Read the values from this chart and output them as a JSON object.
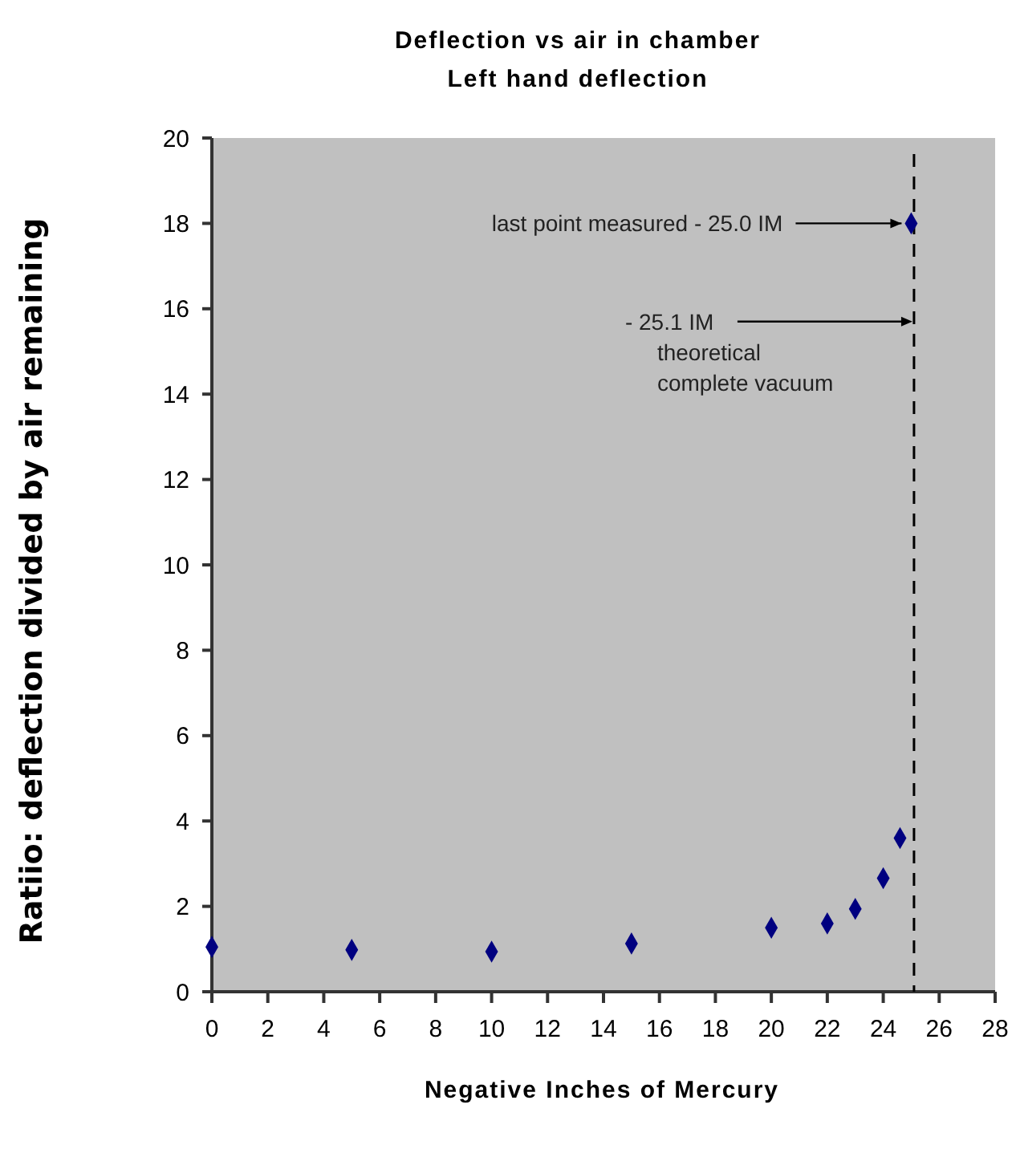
{
  "chart_data": {
    "type": "scatter",
    "title": "Deflection vs air in chamber",
    "subtitle": "Left hand deflection",
    "xlabel": "Negative Inches of Mercury",
    "ylabel": "Ratiio:  deflection divided by air remaining",
    "x": [
      0,
      5,
      10,
      15,
      20,
      22,
      23,
      24,
      24.6,
      25
    ],
    "series": [
      {
        "color": "#000080",
        "values": [
          1.05,
          0.98,
          0.94,
          1.13,
          1.5,
          1.6,
          1.94,
          2.66,
          3.6,
          18
        ]
      }
    ],
    "xlim": [
      0,
      28
    ],
    "xticks": [
      0,
      2,
      4,
      6,
      8,
      10,
      12,
      14,
      16,
      18,
      20,
      22,
      24,
      26,
      28
    ],
    "ylim": [
      0,
      20
    ],
    "yticks": [
      0,
      2,
      4,
      6,
      8,
      10,
      12,
      14,
      16,
      18,
      20
    ],
    "marker": "diamond",
    "ref_lines": [
      {
        "axis": "x",
        "value": 25.1,
        "line_style": "dashed",
        "color": "#000000",
        "label": "- 25.1 IM\ntheoretical\ncomplete vacuum"
      }
    ],
    "annotations": [
      {
        "text": "last point measured   - 25.0 IM",
        "x": 25,
        "y": 18
      }
    ]
  }
}
